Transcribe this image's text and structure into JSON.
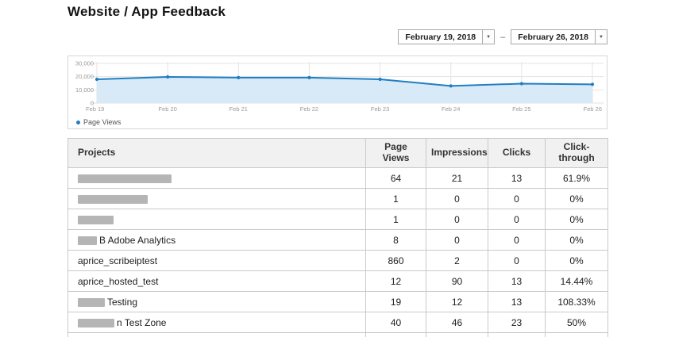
{
  "page": {
    "title": "Website / App Feedback"
  },
  "date_range": {
    "start": "February 19, 2018",
    "end": "February 26, 2018",
    "separator": "–",
    "arrow_icon": "▼"
  },
  "chart_data": {
    "type": "area",
    "title": "",
    "x": [
      "Feb 19",
      "Feb 20",
      "Feb 21",
      "Feb 22",
      "Feb 23",
      "Feb 24",
      "Feb 25",
      "Feb 26"
    ],
    "series": [
      {
        "name": "Page Views",
        "values": [
          18000,
          19800,
          19300,
          19300,
          18000,
          13000,
          14700,
          14200
        ]
      }
    ],
    "ylim": [
      0,
      30000
    ],
    "yticks": [
      0,
      10000,
      20000,
      30000
    ],
    "ytick_labels": [
      "0",
      "10,000",
      "20,000",
      "30,000"
    ],
    "grid": true,
    "legend_position": "bottom-left",
    "line_color": "#1f7ec2",
    "fill_color": "#d8eaf7",
    "tick_color": "#999999",
    "grid_color": "#e3e3e3"
  },
  "table": {
    "headers": [
      "Projects",
      "Page Views",
      "Impressions",
      "Clicks",
      "Click-through"
    ],
    "rows": [
      {
        "project": "",
        "redact": 118,
        "dark": false,
        "values": [
          "64",
          "21",
          "13",
          "61.9%"
        ]
      },
      {
        "project": "",
        "redact": 88,
        "dark": false,
        "values": [
          "1",
          "0",
          "0",
          "0%"
        ]
      },
      {
        "project": "",
        "redact": 45,
        "dark": false,
        "values": [
          "1",
          "0",
          "0",
          "0%"
        ]
      },
      {
        "project": "B Adobe Analytics",
        "redact": 24,
        "dark": false,
        "values": [
          "8",
          "0",
          "0",
          "0%"
        ]
      },
      {
        "project": "aprice_scribeiptest",
        "redact": 0,
        "dark": false,
        "values": [
          "860",
          "2",
          "0",
          "0%"
        ]
      },
      {
        "project": "aprice_hosted_test",
        "redact": 0,
        "dark": false,
        "values": [
          "12",
          "90",
          "13",
          "14.44%"
        ]
      },
      {
        "project": "Testing",
        "redact": 34,
        "dark": false,
        "values": [
          "19",
          "12",
          "13",
          "108.33%"
        ]
      },
      {
        "project": "n Test Zone",
        "redact": 46,
        "dark": false,
        "values": [
          "40",
          "46",
          "23",
          "50%"
        ]
      },
      {
        "project": "",
        "redact": 368,
        "dark": true,
        "values": [
          "",
          "",
          "",
          ""
        ]
      }
    ]
  }
}
